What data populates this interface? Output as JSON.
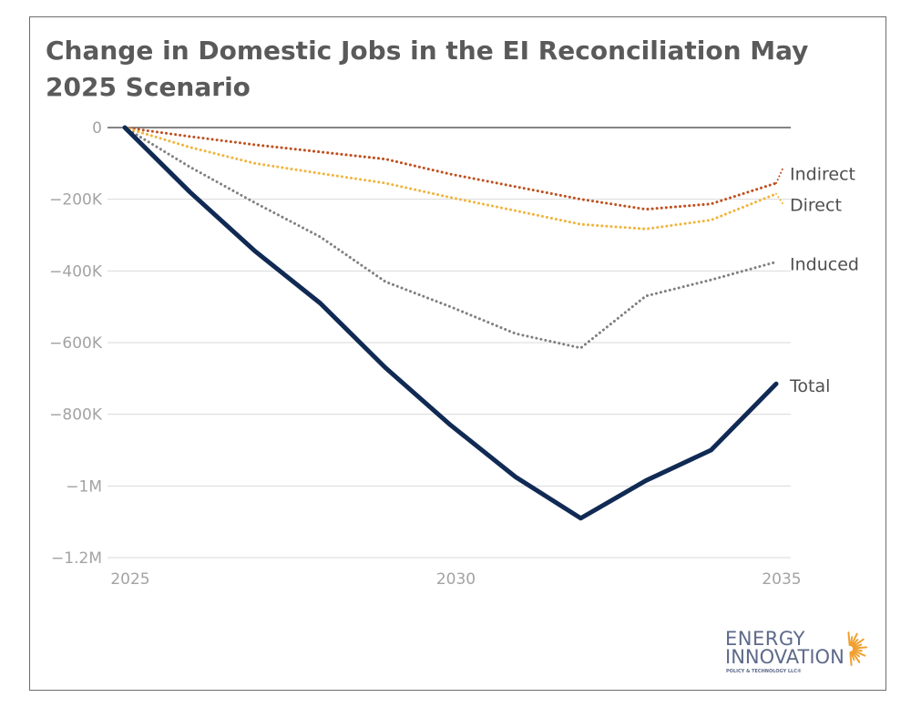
{
  "chart_data": {
    "type": "line",
    "title": "Change in Domestic Jobs in the EI Reconciliation May 2025 Scenario",
    "xlabel": "",
    "ylabel": "",
    "x": [
      2025,
      2026,
      2027,
      2028,
      2029,
      2030,
      2031,
      2032,
      2033,
      2034,
      2035
    ],
    "xlim": [
      2025,
      2035
    ],
    "ylim": [
      -1200000,
      0
    ],
    "x_ticks": [
      {
        "value": 2025,
        "label": "2025"
      },
      {
        "value": 2030,
        "label": "2030"
      },
      {
        "value": 2035,
        "label": "2035"
      }
    ],
    "y_ticks": [
      {
        "value": 0,
        "label": "0"
      },
      {
        "value": -200000,
        "label": "−200K"
      },
      {
        "value": -400000,
        "label": "−400K"
      },
      {
        "value": -600000,
        "label": "−600K"
      },
      {
        "value": -800000,
        "label": "−800K"
      },
      {
        "value": -1000000,
        "label": "−1M"
      },
      {
        "value": -1200000,
        "label": "−1.2M"
      }
    ],
    "grid": true,
    "legend": "direct labels at line ends (right)",
    "series": [
      {
        "name": "Indirect",
        "color": "#c0501f",
        "style": "dotted",
        "width": 3,
        "values": [
          0,
          -25000,
          -48000,
          -68000,
          -88000,
          -130000,
          -165000,
          -200000,
          -228000,
          -213000,
          -155000
        ],
        "label_tail": -110000
      },
      {
        "name": "Direct",
        "color": "#f0b43c",
        "style": "dotted",
        "width": 3,
        "values": [
          0,
          -55000,
          -100000,
          -128000,
          -155000,
          -195000,
          -232000,
          -270000,
          -283000,
          -258000,
          -185000
        ],
        "label_tail": -215000
      },
      {
        "name": "Induced",
        "color": "#808080",
        "style": "dotted",
        "width": 3,
        "values": [
          0,
          -110000,
          -210000,
          -305000,
          -430000,
          -500000,
          -575000,
          -615000,
          -470000,
          -425000,
          -375000
        ]
      },
      {
        "name": "Total",
        "color": "#102a54",
        "style": "solid",
        "width": 5,
        "values": [
          0,
          -180000,
          -345000,
          -490000,
          -670000,
          -830000,
          -975000,
          -1090000,
          -985000,
          -900000,
          -715000
        ]
      }
    ]
  },
  "logo": {
    "line1": "ENERGY",
    "line2": "INNOVATION",
    "line3": "POLICY & TECHNOLOGY LLC®",
    "sun_color": "#f0a030",
    "text_color": "#5e6a8a"
  }
}
